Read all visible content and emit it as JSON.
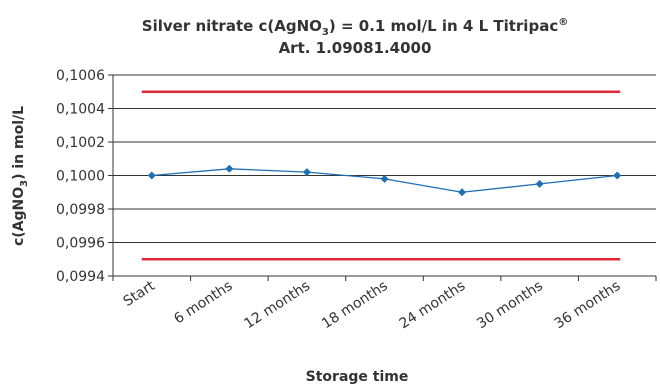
{
  "chart_data": {
    "type": "line",
    "title": {
      "line1_prefix": "Silver nitrate  c(AgNO",
      "line1_sub": "3",
      "line1_mid": ") = 0.1 mol/L in 4 L Titripac",
      "line1_sup": "®",
      "line2": "Art. 1.09081.4000"
    },
    "xlabel": "Storage time",
    "ylabel": {
      "prefix": "c(AgNO",
      "sub": "3",
      "suffix": ") in mol/L"
    },
    "categories": [
      "Start",
      "6 months",
      "12 months",
      "18 months",
      "24 months",
      "30 months",
      "36 months"
    ],
    "ylim": [
      0.0994,
      0.1006
    ],
    "y_ticks": [
      "0,0994",
      "0,0996",
      "0,0998",
      "0,1000",
      "0,1002",
      "0,1004",
      "0,1006"
    ],
    "series": [
      {
        "values": [
          0.1,
          0.10004,
          0.10002,
          0.09998,
          0.0999,
          0.09995,
          0.1
        ],
        "color": "#1f6fb5",
        "marker": "diamond"
      }
    ],
    "limits": [
      {
        "value": 0.1005,
        "color": "#e0283c"
      },
      {
        "value": 0.0995,
        "color": "#e0283c"
      }
    ],
    "grid": true,
    "gridline_color": "#333333"
  }
}
